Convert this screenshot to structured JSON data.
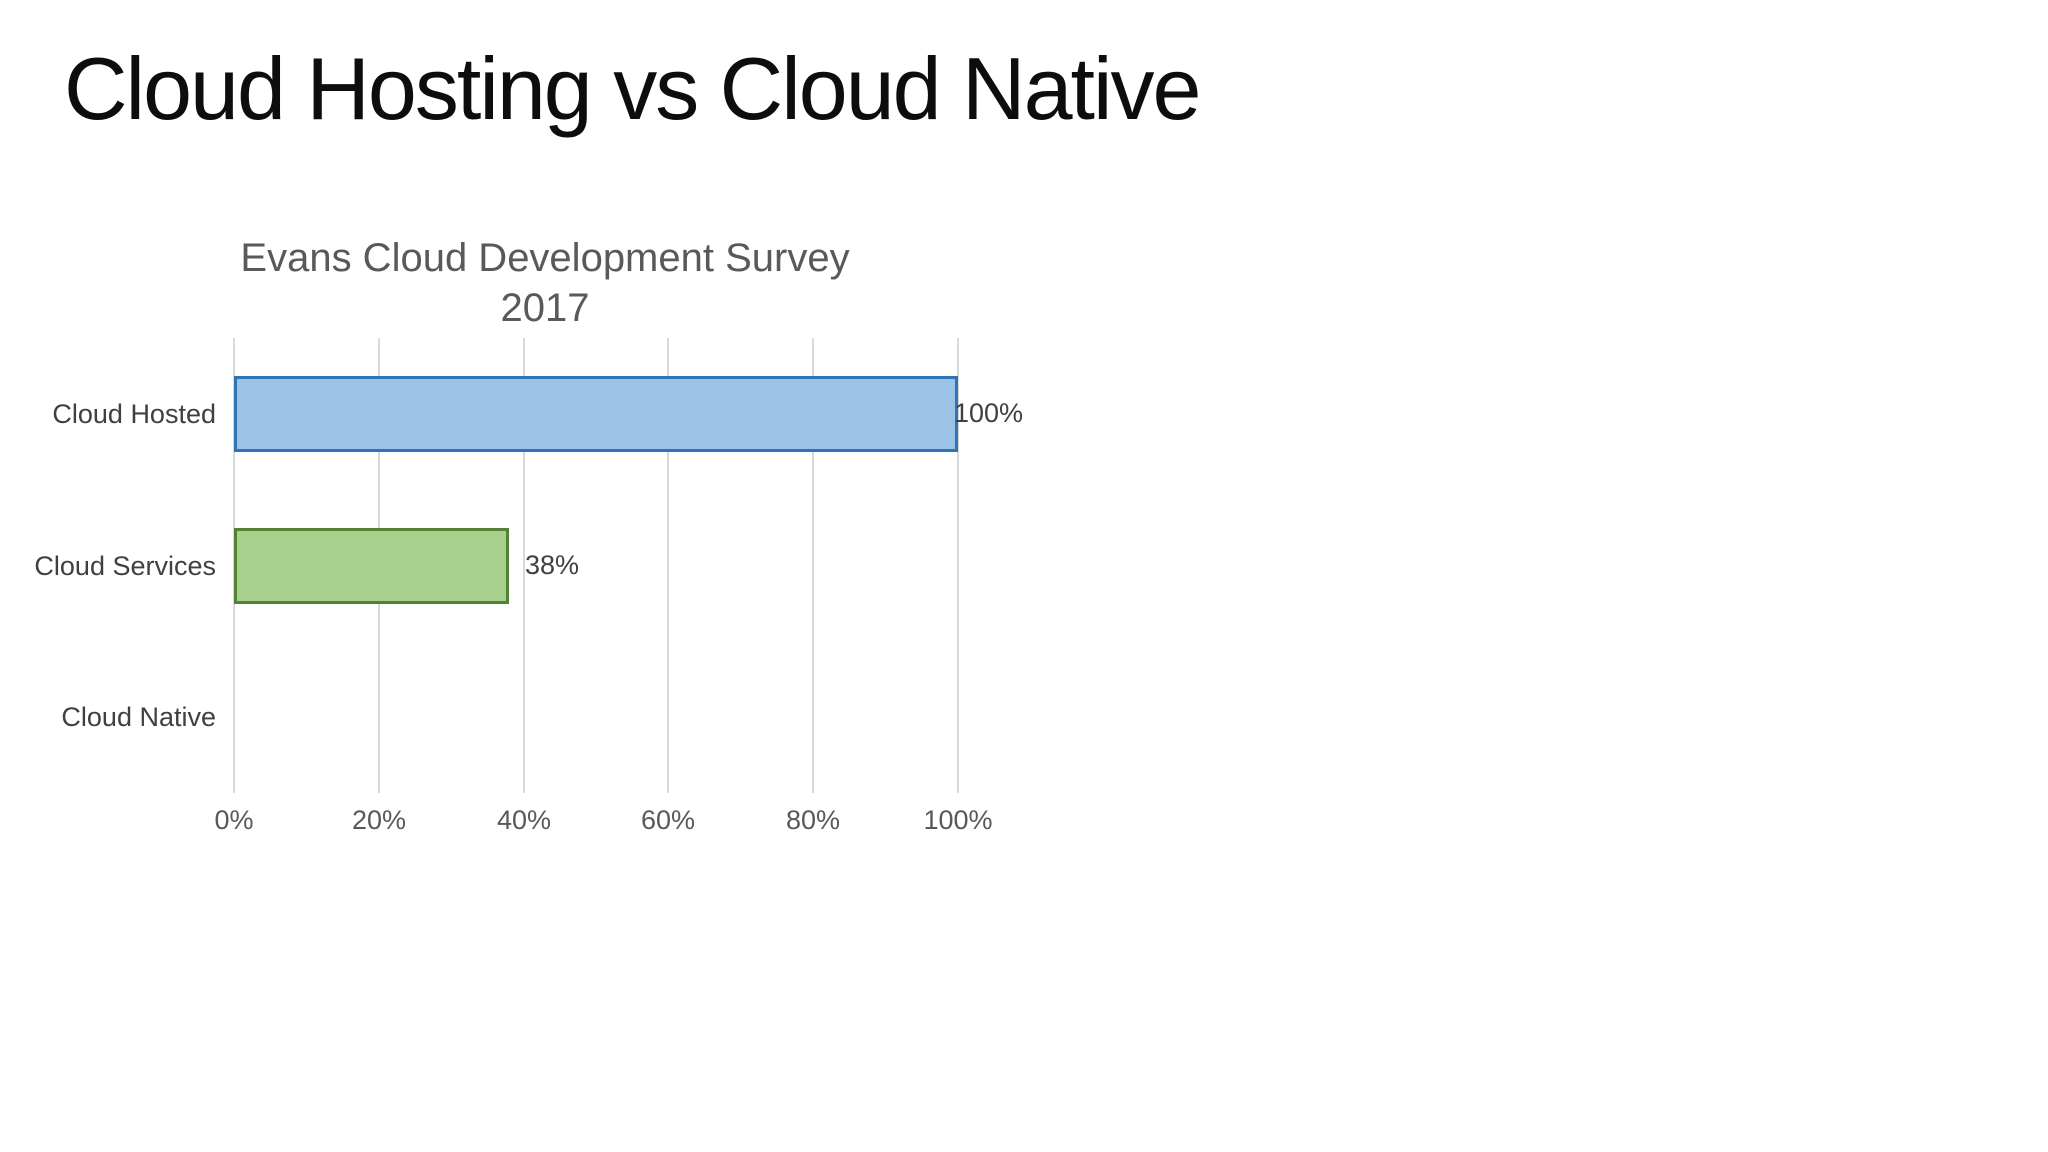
{
  "slide": {
    "title": "Cloud Hosting vs Cloud Native"
  },
  "chart": {
    "title": [
      "Evans Cloud Development Survey",
      "2017"
    ],
    "categories": [
      {
        "label": "Cloud Hosted",
        "value": 100,
        "value_label": "100%",
        "fill": "#9CC3E5",
        "border": "#2E75B6"
      },
      {
        "label": "Cloud Services",
        "value": 38,
        "value_label": "38%",
        "fill": "#A9D18E",
        "border": "#548235"
      },
      {
        "label": "Cloud Native",
        "value": 0,
        "value_label": "",
        "fill": null,
        "border": null
      }
    ],
    "x_ticks": [
      "0%",
      "20%",
      "40%",
      "60%",
      "80%",
      "100%"
    ],
    "colors": {
      "grid": "#D9D9D9",
      "tick_text": "#595959",
      "category_text": "#404040",
      "value_text": "#404040",
      "title_text": "#595959",
      "slide_title_text": "#0D0D0D",
      "background": "#FFFFFF"
    }
  },
  "chart_data": {
    "type": "bar",
    "orientation": "horizontal",
    "title": "Evans Cloud Development Survey 2017",
    "categories": [
      "Cloud Hosted",
      "Cloud Services",
      "Cloud Native"
    ],
    "values": [
      100,
      38,
      0
    ],
    "unit": "%",
    "data_labels": [
      "100%",
      "38%",
      null
    ],
    "xlabel": "",
    "ylabel": "",
    "xlim": [
      0,
      100
    ],
    "x_tick_labels": [
      "0%",
      "20%",
      "40%",
      "60%",
      "80%",
      "100%"
    ],
    "grid": "vertical",
    "legend": false,
    "series_colors": [
      "#9CC3E5",
      "#A9D18E",
      null
    ]
  }
}
